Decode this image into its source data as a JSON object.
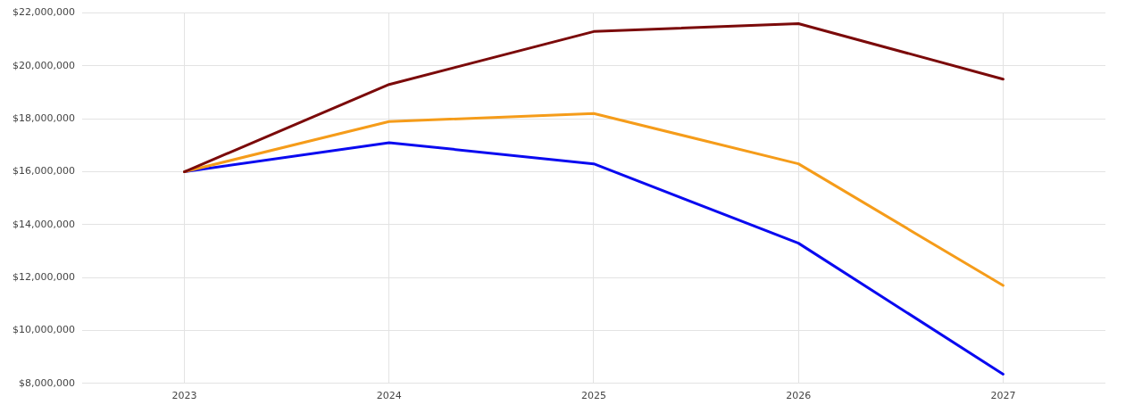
{
  "chart_data": {
    "type": "line",
    "categories": [
      "2023",
      "2024",
      "2025",
      "2026",
      "2027"
    ],
    "series": [
      {
        "color": "#7b0a0a",
        "values": [
          16000000,
          19300000,
          21300000,
          21600000,
          19500000
        ]
      },
      {
        "color": "#f59c1a",
        "values": [
          16000000,
          17900000,
          18200000,
          16300000,
          11700000
        ]
      },
      {
        "color": "#0a0af0",
        "values": [
          16000000,
          17100000,
          16300000,
          13300000,
          8350000
        ]
      }
    ],
    "ylim": [
      8000000,
      22000000
    ],
    "yticks": [
      {
        "value": 8000000,
        "label": "$8,000,000"
      },
      {
        "value": 10000000,
        "label": "$10,000,000"
      },
      {
        "value": 12000000,
        "label": "$12,000,000"
      },
      {
        "value": 14000000,
        "label": "$14,000,000"
      },
      {
        "value": 16000000,
        "label": "$16,000,000"
      },
      {
        "value": 18000000,
        "label": "$18,000,000"
      },
      {
        "value": 20000000,
        "label": "$20,000,000"
      },
      {
        "value": 22000000,
        "label": "$22,000,000"
      }
    ],
    "grid": true,
    "legend": false,
    "marker": "none",
    "line_style": "solid"
  }
}
